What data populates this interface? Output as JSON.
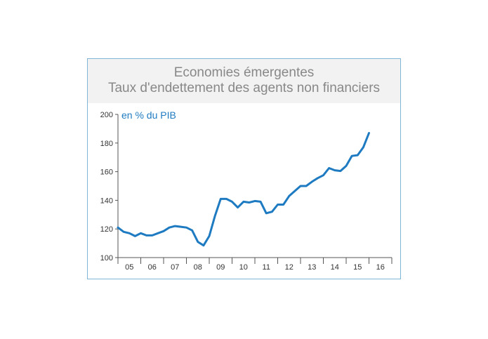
{
  "chart_data": {
    "type": "line",
    "title": [
      "Economies émergentes",
      "Taux d'endettement des agents non financiers"
    ],
    "unit_label": "en % du PIB",
    "ylim": [
      100,
      200
    ],
    "y_ticks": [
      100,
      120,
      140,
      160,
      180,
      200
    ],
    "x_ticks": [
      "05",
      "06",
      "07",
      "08",
      "09",
      "10",
      "11",
      "12",
      "13",
      "14",
      "15",
      "16"
    ],
    "x_range": [
      2005,
      2017
    ],
    "line_color": "#1f7bc1",
    "grid": false,
    "series": [
      {
        "x": [
          2005.0,
          2005.25,
          2005.5,
          2005.75,
          2006.0,
          2006.25,
          2006.5,
          2006.75,
          2007.0,
          2007.25,
          2007.5,
          2007.75,
          2008.0,
          2008.25,
          2008.5,
          2008.75,
          2009.0,
          2009.25,
          2009.5,
          2009.75,
          2010.0,
          2010.25,
          2010.5,
          2010.75,
          2011.0,
          2011.25,
          2011.5,
          2011.75,
          2012.0,
          2012.25,
          2012.5,
          2012.75,
          2013.0,
          2013.25,
          2013.5,
          2013.75,
          2014.0,
          2014.25,
          2014.5,
          2014.75,
          2015.0,
          2015.25,
          2015.5,
          2015.75,
          2016.0
        ],
        "y": [
          121,
          118,
          117,
          115,
          117,
          115.5,
          115.5,
          117,
          118.5,
          121,
          122,
          121.5,
          121,
          119,
          111,
          108.5,
          115,
          129,
          141,
          141,
          139,
          135,
          139,
          138.5,
          139.5,
          139,
          131,
          132,
          137,
          137,
          143,
          146.5,
          150,
          150,
          153,
          155.5,
          157.5,
          162.5,
          161,
          160.5,
          164,
          171,
          171.5,
          177,
          187
        ]
      }
    ]
  }
}
